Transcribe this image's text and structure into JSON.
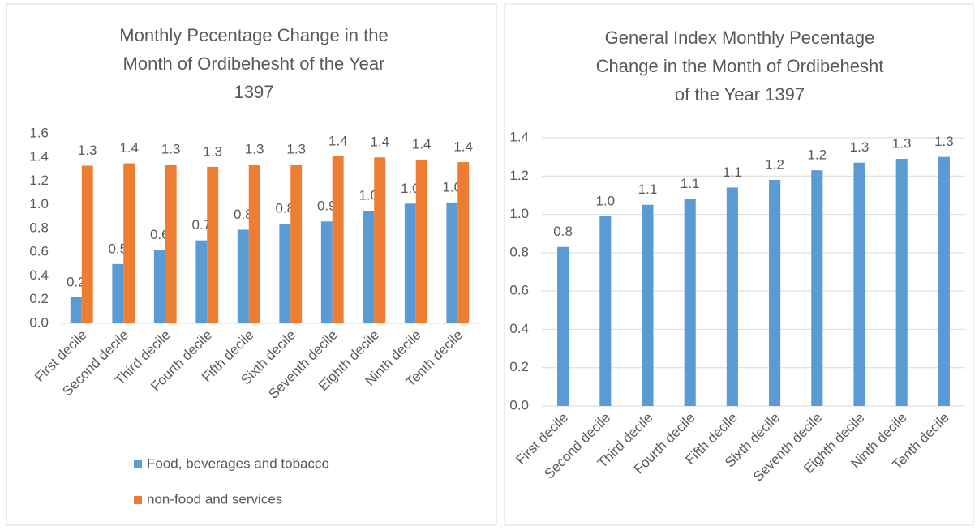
{
  "chart_data": [
    {
      "type": "bar",
      "title": [
        "Monthly Pecentage Change in the",
        "Month of  Ordibehesht of the Year",
        "1397"
      ],
      "categories": [
        "First decile",
        "Second decile",
        "Third decile",
        "Fourth decile",
        "Fifth decile",
        "Sixth decile",
        "Seventh decile",
        "Eighth decile",
        "Ninth decile",
        "Tenth decile"
      ],
      "series": [
        {
          "name": "Food, beverages and tobacco",
          "color": "#5b9bd5",
          "values": [
            0.22,
            0.5,
            0.62,
            0.7,
            0.79,
            0.84,
            0.86,
            0.95,
            1.01,
            1.02
          ],
          "value_labels": [
            "0.2",
            "0.5",
            "0.6",
            "0.7",
            "0.8",
            "0.8",
            "0.9",
            "1.0",
            "1.0",
            "1.0"
          ]
        },
        {
          "name": "non-food and services",
          "color": "#ed7d31",
          "values": [
            1.33,
            1.35,
            1.34,
            1.32,
            1.34,
            1.34,
            1.41,
            1.4,
            1.38,
            1.36
          ],
          "value_labels": [
            "1.3",
            "1.4",
            "1.3",
            "1.3",
            "1.3",
            "1.3",
            "1.4",
            "1.4",
            "1.4",
            "1.4"
          ]
        }
      ],
      "ylim": [
        0,
        1.6
      ],
      "yticks": [
        {
          "value": 0,
          "label": "0.0"
        },
        0.2,
        0.4,
        0.6,
        0.8,
        {
          "value": 1,
          "label": "1.0"
        },
        1.2,
        1.4,
        1.6
      ],
      "grid": false,
      "legend": "bottom"
    },
    {
      "type": "bar",
      "title": [
        "General Index Monthly Pecentage",
        "Change in the Month of  Ordibehesht",
        "of the Year  1397"
      ],
      "categories": [
        "First decile",
        "Second decile",
        "Third decile",
        "Fourth decile",
        "Fifth decile",
        "Sixth decile",
        "Seventh decile",
        "Eighth decile",
        "Ninth decile",
        "Tenth decile"
      ],
      "values": [
        0.83,
        0.99,
        1.05,
        1.08,
        1.14,
        1.18,
        1.23,
        1.27,
        1.29,
        1.3
      ],
      "value_labels": [
        "0.8",
        "1.0",
        "1.1",
        "1.1",
        "1.1",
        "1.2",
        "1.2",
        "1.3",
        "1.3",
        "1.3"
      ],
      "color": "#5b9bd5",
      "ylim": [
        0,
        1.4
      ],
      "yticks": [
        {
          "value": 0,
          "label": "0.0"
        },
        0.2,
        0.4,
        0.6,
        0.8,
        {
          "value": 1,
          "label": "1.0"
        },
        1.2,
        1.4
      ],
      "grid": true
    }
  ]
}
